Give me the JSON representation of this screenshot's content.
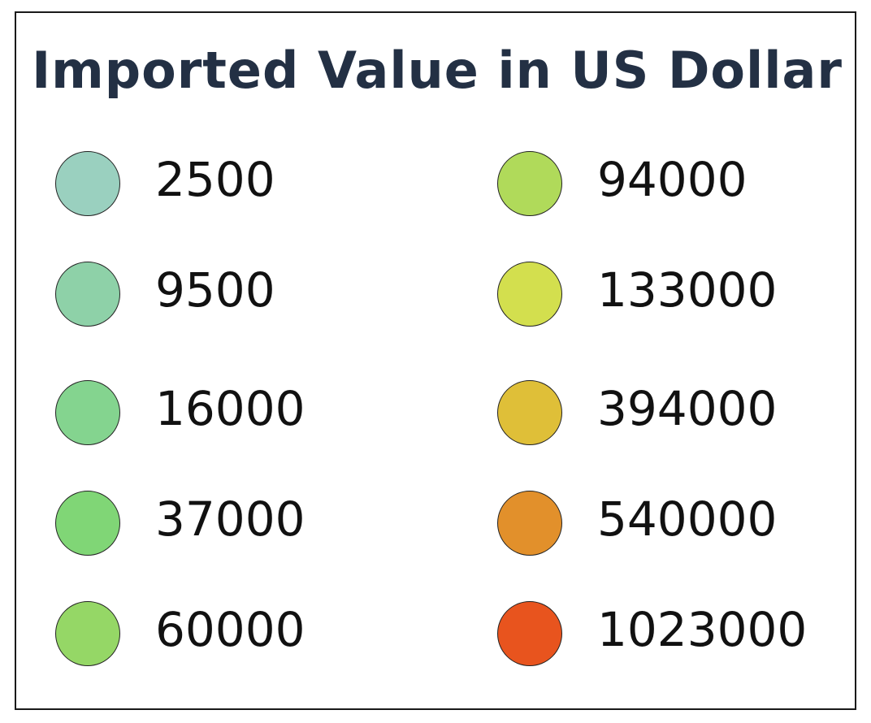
{
  "legend": {
    "title": "Imported Value in US Dollar",
    "items": [
      {
        "label": "2500",
        "color": "#9ad0bf"
      },
      {
        "label": "9500",
        "color": "#8ed1a8"
      },
      {
        "label": "16000",
        "color": "#84d48f"
      },
      {
        "label": "37000",
        "color": "#80d676"
      },
      {
        "label": "60000",
        "color": "#95d766"
      },
      {
        "label": "94000",
        "color": "#b0da5a"
      },
      {
        "label": "133000",
        "color": "#d3df4e"
      },
      {
        "label": "394000",
        "color": "#dfbf38"
      },
      {
        "label": "540000",
        "color": "#e2902b"
      },
      {
        "label": "1023000",
        "color": "#e8541e"
      }
    ]
  }
}
